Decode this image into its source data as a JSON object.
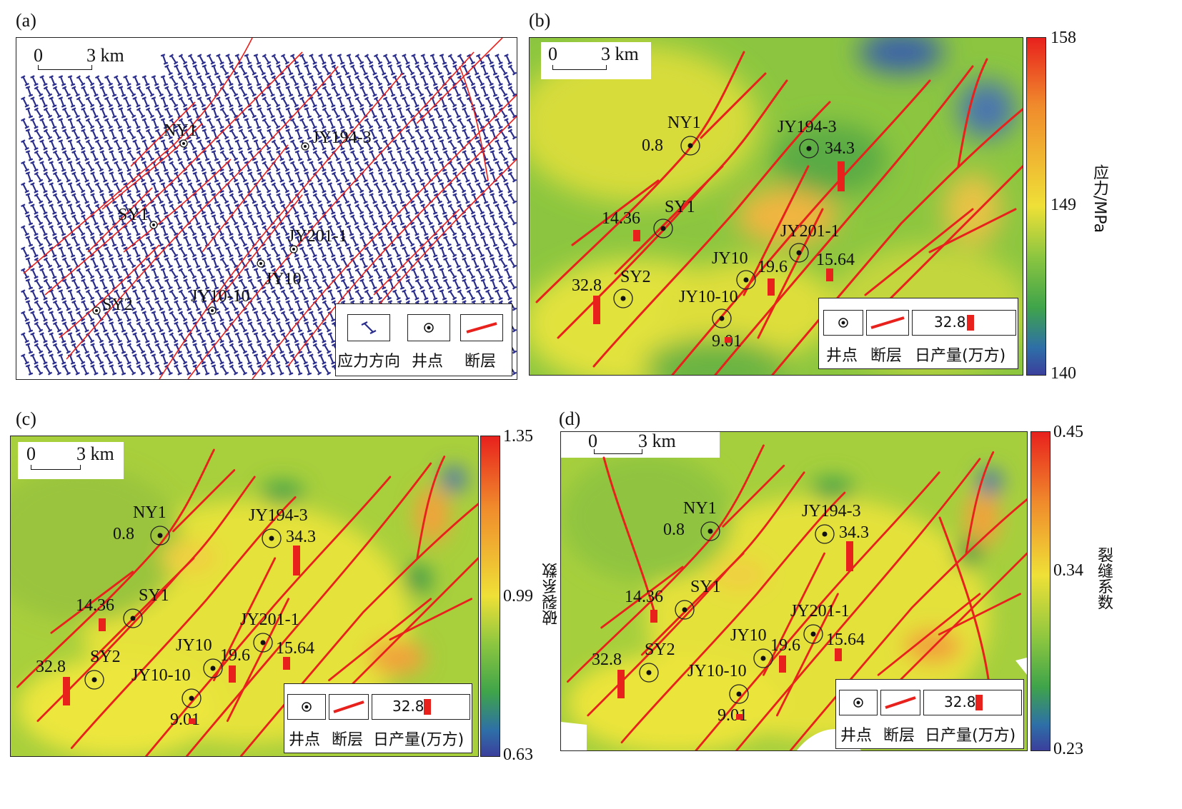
{
  "panels": {
    "a": {
      "letter": "(a)"
    },
    "b": {
      "letter": "(b)"
    },
    "c": {
      "letter": "(c)"
    },
    "d": {
      "letter": "(d)"
    }
  },
  "scale_bar": {
    "zero": "0",
    "dist": "3 km"
  },
  "legend": {
    "stress_direction": "应力方向",
    "well": "井点",
    "fault": "断层",
    "daily_production": "日产量(万方)",
    "sample_value": "32.8"
  },
  "wells": {
    "NY1": "NY1",
    "JY194_3": "JY194-3",
    "SY1": "SY1",
    "JY201_1": "JY201-1",
    "JY10": "JY10",
    "SY2": "SY2",
    "JY10_10": "JY10-10"
  },
  "production": {
    "NY1": "0.8",
    "JY194_3": "34.3",
    "SY1": "14.36",
    "JY201_1": "15.64",
    "JY10": "19.6",
    "SY2": "32.8",
    "JY10_10": "9.01"
  },
  "colorbars": {
    "b": {
      "title": "应力/MPa",
      "max": "158",
      "mid": "149",
      "min": "140"
    },
    "c": {
      "title": "破裂系数",
      "max": "1.35",
      "mid": "0.99",
      "min": "0.63"
    },
    "d": {
      "title": "裂缝系数",
      "max": "0.45",
      "mid": "0.34",
      "min": "0.23"
    }
  },
  "colors": {
    "fault": "#e8211d",
    "stress_symbol": "#2b2e8c",
    "production_bar": "#e8211d",
    "map_green": "#7fc242",
    "map_yellow": "#e6e23a",
    "map_orange": "#f0a030",
    "map_blue": "#3a5fa8"
  }
}
